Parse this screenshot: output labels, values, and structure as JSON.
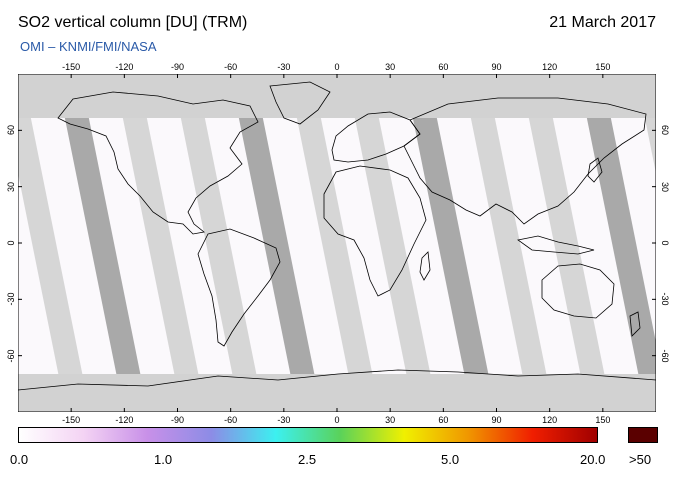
{
  "header": {
    "title": "SO2 vertical column [DU] (TRM)",
    "date": "21 March 2017",
    "credit": "OMI  –  KNMI/FMI/NASA"
  },
  "map": {
    "projection": "equirectangular",
    "lon_range": [
      -180,
      180
    ],
    "lat_range": [
      -90,
      90
    ],
    "lon_ticks": [
      "-150",
      "-120",
      "-90",
      "-60",
      "-30",
      "0",
      "30",
      "60",
      "90",
      "120",
      "150"
    ],
    "lat_ticks": [
      "60",
      "30",
      "0",
      "-30",
      "-60"
    ],
    "colors": {
      "no_data_dark": "#a0a0a0",
      "no_data_light": "#d2d2d2",
      "background_value": "#fbf9fc",
      "coastline": "#000000"
    }
  },
  "colorbar": {
    "labels": [
      "0.0",
      "1.0",
      "2.5",
      "5.0",
      "20.0",
      ">50"
    ],
    "stops": [
      "#ffffff",
      "#f4d4f4",
      "#c890e8",
      "#8c8ce6",
      "#3cf0f0",
      "#5ad25a",
      "#f0f000",
      "#f09600",
      "#f01e00",
      "#a00000"
    ],
    "over_color": "#5a0000"
  }
}
